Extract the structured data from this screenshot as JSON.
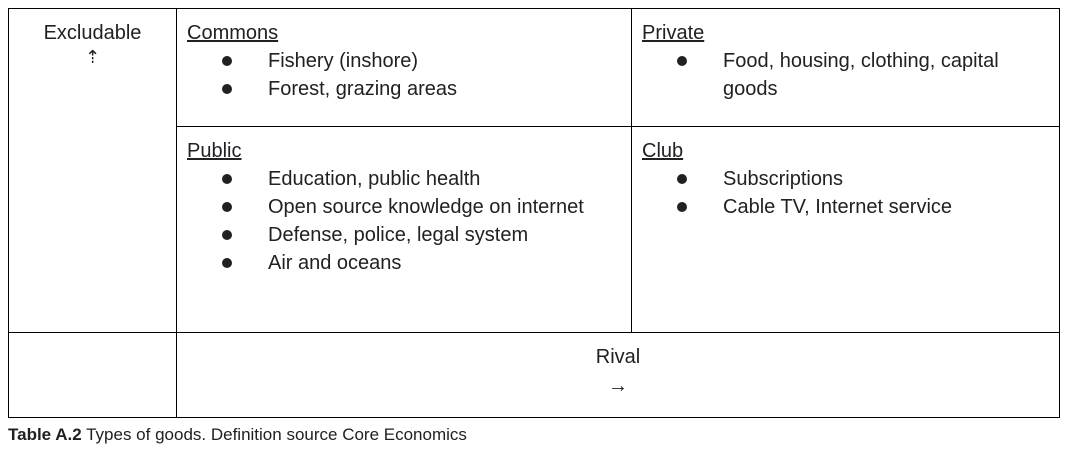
{
  "table": {
    "row_axis": {
      "label": "Excludable",
      "arrow": "⇡"
    },
    "commons": {
      "title": "Commons",
      "items": [
        "Fishery (inshore)",
        "Forest, grazing areas"
      ]
    },
    "private": {
      "title": "Private",
      "items": [
        "Food, housing, clothing, capital goods"
      ]
    },
    "public": {
      "title": "Public",
      "items": [
        "Education, public health",
        "Open source knowledge on internet",
        "Defense, police, legal system",
        "Air and oceans"
      ]
    },
    "club": {
      "title": "Club",
      "items": [
        "Subscriptions",
        "Cable TV, Internet service"
      ]
    },
    "col_axis": {
      "label": "Rival",
      "arrow": "→"
    }
  },
  "caption": {
    "label": "Table A.2",
    "text": " Types of goods. Definition source Core Economics"
  }
}
